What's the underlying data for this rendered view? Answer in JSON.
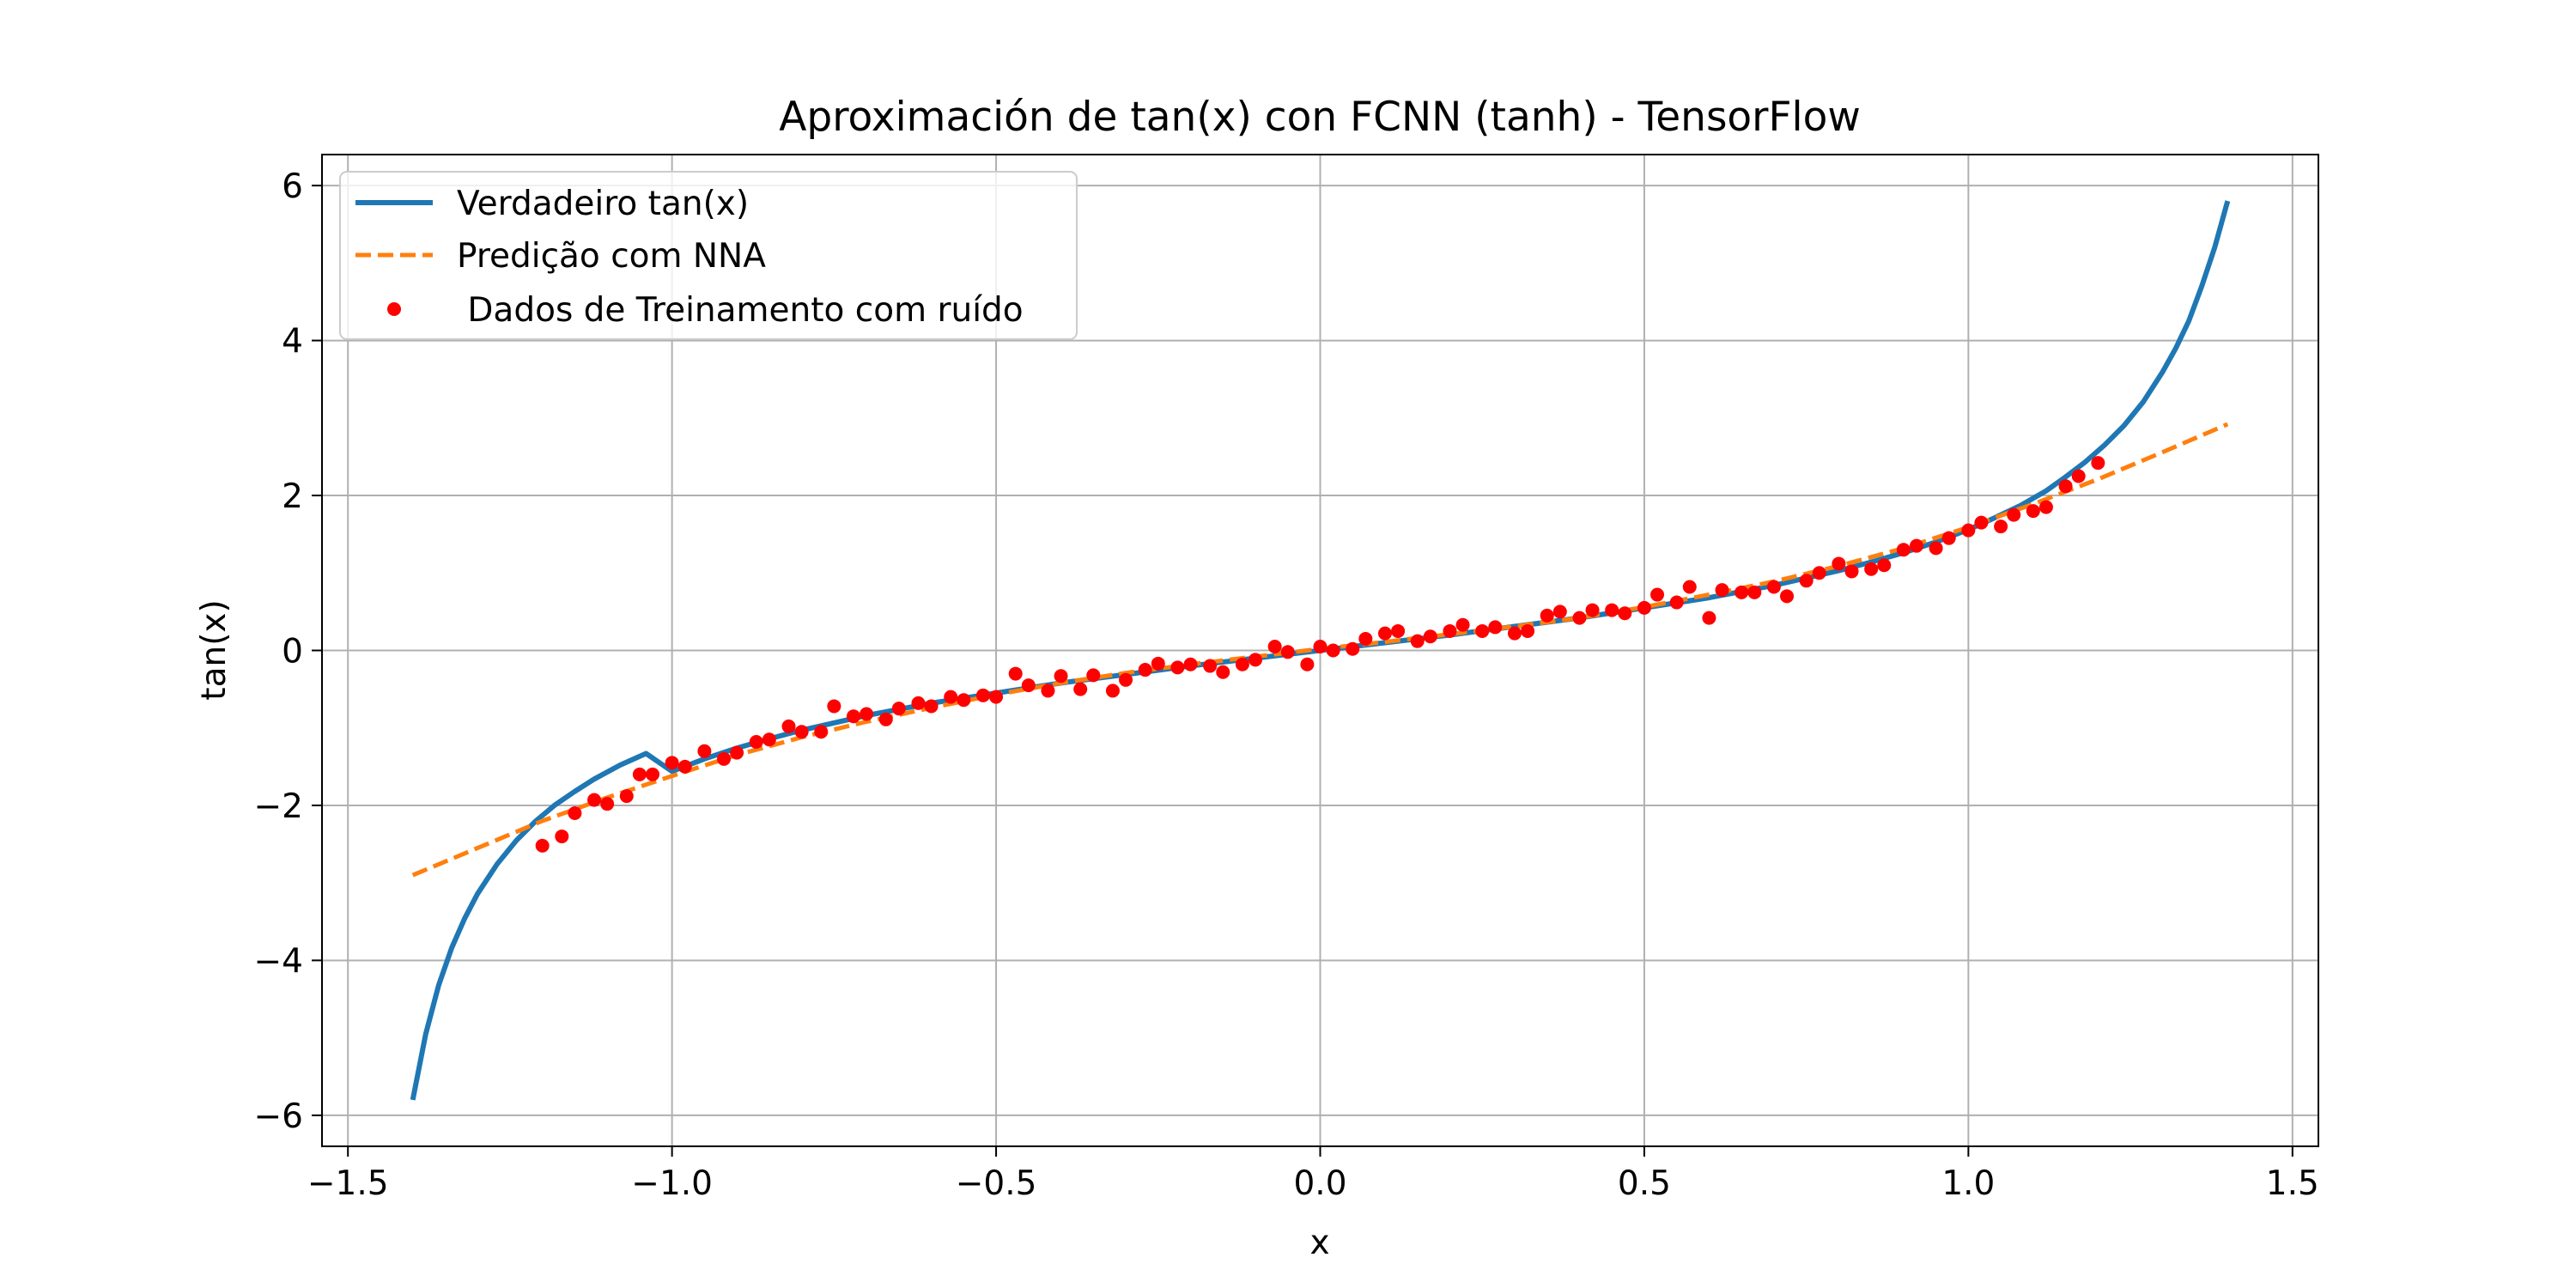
{
  "chart_data": {
    "type": "line",
    "title": "Aproximación de tan(x) con FCNN (tanh) - TensorFlow",
    "xlabel": "x",
    "ylabel": "tan(x)",
    "xlim": [
      -1.54,
      1.54
    ],
    "ylim": [
      -6.4,
      6.4
    ],
    "grid": true,
    "legend_position": "top-left",
    "x_ticks": [
      {
        "value": -1.5,
        "label": "−1.5"
      },
      {
        "value": -1.0,
        "label": "−1.0"
      },
      {
        "value": -0.5,
        "label": "−0.5"
      },
      {
        "value": 0.0,
        "label": "0.0"
      },
      {
        "value": 0.5,
        "label": "0.5"
      },
      {
        "value": 1.0,
        "label": "1.0"
      },
      {
        "value": 1.5,
        "label": "1.5"
      }
    ],
    "y_ticks": [
      {
        "value": -6,
        "label": "−6"
      },
      {
        "value": -4,
        "label": "−4"
      },
      {
        "value": -2,
        "label": "−2"
      },
      {
        "value": 0,
        "label": "0"
      },
      {
        "value": 2,
        "label": "2"
      },
      {
        "value": 4,
        "label": "4"
      },
      {
        "value": 6,
        "label": "6"
      }
    ],
    "series": [
      {
        "name": "Verdadeiro tan(x)",
        "style": "line",
        "color": "#1f77b4",
        "x": [
          -1.4,
          -1.38,
          -1.36,
          -1.34,
          -1.32,
          -1.3,
          -1.27,
          -1.24,
          -1.21,
          -1.18,
          -1.15,
          -1.12,
          -1.08,
          -1.04,
          -1.0,
          -0.95,
          -0.9,
          -0.85,
          -0.8,
          -0.7,
          -0.6,
          -0.5,
          -0.4,
          -0.3,
          -0.2,
          -0.1,
          0.0,
          0.1,
          0.2,
          0.3,
          0.4,
          0.5,
          0.6,
          0.7,
          0.8,
          0.85,
          0.9,
          0.95,
          1.0,
          1.04,
          1.08,
          1.12,
          1.15,
          1.18,
          1.21,
          1.24,
          1.27,
          1.3,
          1.32,
          1.34,
          1.36,
          1.38,
          1.4
        ],
        "y": [
          -5.8,
          -4.95,
          -4.32,
          -3.84,
          -3.46,
          -3.14,
          -2.76,
          -2.45,
          -2.2,
          -1.99,
          -1.82,
          -1.66,
          -1.48,
          -1.33,
          -1.56,
          -1.4,
          -1.26,
          -1.14,
          -1.03,
          -0.84,
          -0.68,
          -0.55,
          -0.42,
          -0.31,
          -0.2,
          -0.1,
          0.0,
          0.1,
          0.2,
          0.31,
          0.42,
          0.55,
          0.68,
          0.84,
          1.03,
          1.14,
          1.26,
          1.4,
          1.56,
          1.71,
          1.87,
          2.06,
          2.24,
          2.43,
          2.65,
          2.9,
          3.21,
          3.6,
          3.9,
          4.25,
          4.7,
          5.2,
          5.8
        ]
      },
      {
        "name": "Predição com NNA",
        "style": "dashed",
        "color": "#ff7f0e",
        "x": [
          -1.4,
          -1.3,
          -1.2,
          -1.1,
          -1.0,
          -0.9,
          -0.8,
          -0.7,
          -0.6,
          -0.5,
          -0.4,
          -0.3,
          -0.2,
          -0.1,
          0.0,
          0.1,
          0.2,
          0.3,
          0.4,
          0.5,
          0.6,
          0.7,
          0.8,
          0.9,
          1.0,
          1.1,
          1.2,
          1.3,
          1.4
        ],
        "y": [
          -2.9,
          -2.55,
          -2.2,
          -1.9,
          -1.62,
          -1.35,
          -1.12,
          -0.92,
          -0.74,
          -0.57,
          -0.42,
          -0.29,
          -0.18,
          -0.08,
          0.02,
          0.11,
          0.21,
          0.31,
          0.42,
          0.56,
          0.72,
          0.89,
          1.09,
          1.32,
          1.59,
          1.89,
          2.21,
          2.56,
          2.92
        ]
      },
      {
        "name": " Dados de Treinamento com ruído",
        "style": "scatter",
        "color": "#ff0000",
        "x": [
          -1.2,
          -1.17,
          -1.15,
          -1.12,
          -1.1,
          -1.07,
          -1.05,
          -1.03,
          -1.0,
          -0.98,
          -0.95,
          -0.92,
          -0.9,
          -0.87,
          -0.85,
          -0.82,
          -0.8,
          -0.77,
          -0.75,
          -0.72,
          -0.7,
          -0.67,
          -0.65,
          -0.62,
          -0.6,
          -0.57,
          -0.55,
          -0.52,
          -0.5,
          -0.47,
          -0.45,
          -0.42,
          -0.4,
          -0.37,
          -0.35,
          -0.32,
          -0.3,
          -0.27,
          -0.25,
          -0.22,
          -0.2,
          -0.17,
          -0.15,
          -0.12,
          -0.1,
          -0.07,
          -0.05,
          -0.02,
          0.0,
          0.02,
          0.05,
          0.07,
          0.1,
          0.12,
          0.15,
          0.17,
          0.2,
          0.22,
          0.25,
          0.27,
          0.3,
          0.32,
          0.35,
          0.37,
          0.4,
          0.42,
          0.45,
          0.47,
          0.5,
          0.52,
          0.55,
          0.57,
          0.6,
          0.62,
          0.65,
          0.67,
          0.7,
          0.72,
          0.75,
          0.77,
          0.8,
          0.82,
          0.85,
          0.87,
          0.9,
          0.92,
          0.95,
          0.97,
          1.0,
          1.02,
          1.05,
          1.07,
          1.1,
          1.12,
          1.15,
          1.17,
          1.2
        ],
        "y": [
          -2.52,
          -2.4,
          -2.1,
          -1.93,
          -1.98,
          -1.88,
          -1.6,
          -1.6,
          -1.45,
          -1.5,
          -1.3,
          -1.4,
          -1.32,
          -1.18,
          -1.15,
          -0.98,
          -1.05,
          -1.05,
          -0.72,
          -0.85,
          -0.82,
          -0.89,
          -0.75,
          -0.68,
          -0.72,
          -0.6,
          -0.64,
          -0.58,
          -0.6,
          -0.3,
          -0.45,
          -0.52,
          -0.33,
          -0.5,
          -0.32,
          -0.52,
          -0.38,
          -0.25,
          -0.17,
          -0.22,
          -0.18,
          -0.2,
          -0.28,
          -0.18,
          -0.12,
          0.05,
          -0.02,
          -0.18,
          0.05,
          0.0,
          0.02,
          0.15,
          0.22,
          0.25,
          0.12,
          0.18,
          0.25,
          0.33,
          0.25,
          0.3,
          0.22,
          0.25,
          0.45,
          0.5,
          0.42,
          0.52,
          0.52,
          0.48,
          0.55,
          0.72,
          0.62,
          0.82,
          0.42,
          0.78,
          0.75,
          0.75,
          0.82,
          0.7,
          0.9,
          1.0,
          1.12,
          1.02,
          1.05,
          1.1,
          1.3,
          1.35,
          1.32,
          1.45,
          1.55,
          1.65,
          1.6,
          1.75,
          1.8,
          1.85,
          2.12,
          2.25,
          2.42
        ]
      }
    ]
  }
}
